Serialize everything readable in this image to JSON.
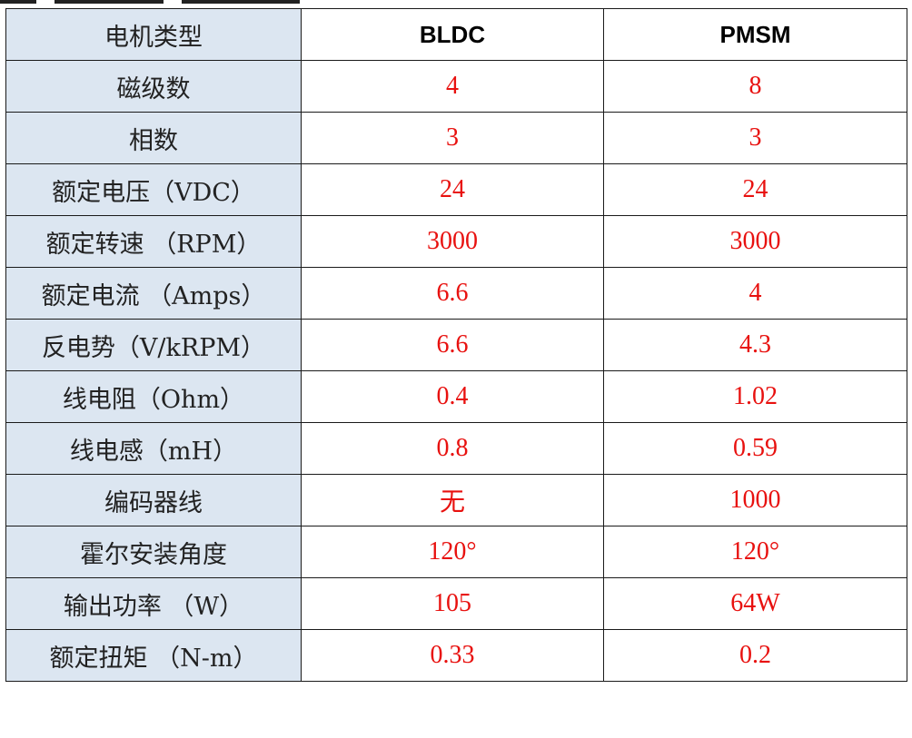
{
  "table": {
    "headers": [
      "电机类型",
      "BLDC",
      "PMSM"
    ],
    "rows": [
      [
        "磁级数",
        "4",
        "8"
      ],
      [
        "相数",
        "3",
        "3"
      ],
      [
        "额定电压（VDC）",
        "24",
        "24"
      ],
      [
        "额定转速 （RPM）",
        "3000",
        "3000"
      ],
      [
        "额定电流 （Amps）",
        "6.6",
        "4"
      ],
      [
        "反电势（V/kRPM）",
        "6.6",
        "4.3"
      ],
      [
        "线电阻（Ohm）",
        "0.4",
        "1.02"
      ],
      [
        "线电感（mH）",
        "0.8",
        "0.59"
      ],
      [
        "编码器线",
        "无",
        "1000"
      ],
      [
        "霍尔安装角度",
        "120°",
        "120°"
      ],
      [
        "输出功率 （W）",
        "105",
        "64W"
      ],
      [
        "额定扭矩 （N-m）",
        "0.33",
        "0.2"
      ]
    ]
  },
  "colors": {
    "label_background": "#dce6f1",
    "value_text": "#e8110f",
    "border": "#1a1a1a"
  }
}
